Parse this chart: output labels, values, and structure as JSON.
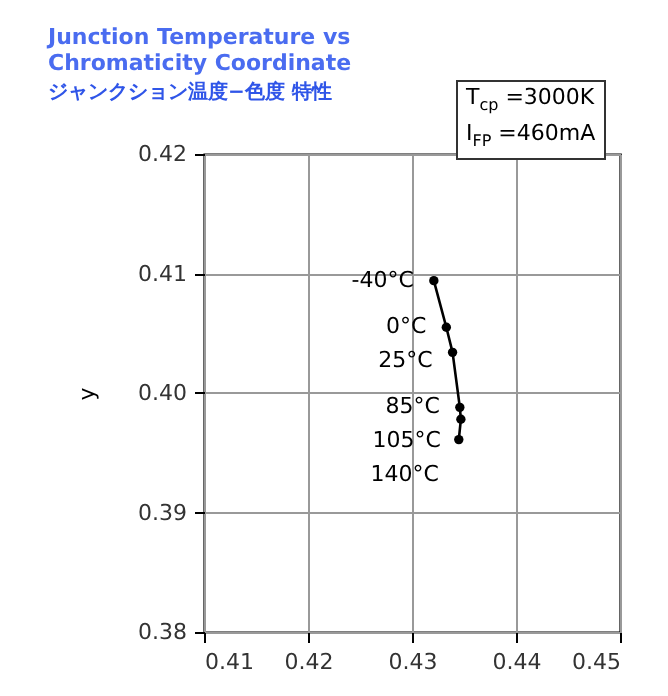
{
  "chart_data": {
    "type": "line",
    "title": "Junction Temperature vs Chromaticity Coordinate",
    "subtitle": "ジャンクション温度−色度 特性",
    "ylabel": "y",
    "x": [
      0.4321,
      0.4333,
      0.4339,
      0.4346,
      0.4347,
      0.4345
    ],
    "series": [
      {
        "color": "#000000",
        "values": [
          0.4094,
          0.4055,
          0.4034,
          0.3988,
          0.3978,
          0.3961
        ]
      }
    ],
    "annotations": [
      {
        "text": "-40°C",
        "x": 0.4321,
        "y": 0.4094
      },
      {
        "text": "0°C",
        "x": 0.4333,
        "y": 0.4055
      },
      {
        "text": "25°C",
        "x": 0.4339,
        "y": 0.4034
      },
      {
        "text": "85°C",
        "x": 0.4346,
        "y": 0.3988
      },
      {
        "text": "105°C",
        "x": 0.4347,
        "y": 0.3978
      },
      {
        "text": "140°C",
        "x": 0.4345,
        "y": 0.3961
      },
      "T$_{cp}$ =3000K",
      "I$_{FP}$ =460mA"
    ],
    "xlim": [
      0.41,
      0.45
    ],
    "xticks": [
      0.41,
      0.42,
      0.43,
      0.44,
      0.45
    ],
    "ylim": [
      0.38,
      0.42
    ],
    "yticks": [
      0.38,
      0.39,
      {
        "value": 0.4,
        "label": "0.40"
      },
      0.41,
      0.42
    ],
    "grid": true,
    "marker": "circle",
    "line_style": "solid"
  }
}
